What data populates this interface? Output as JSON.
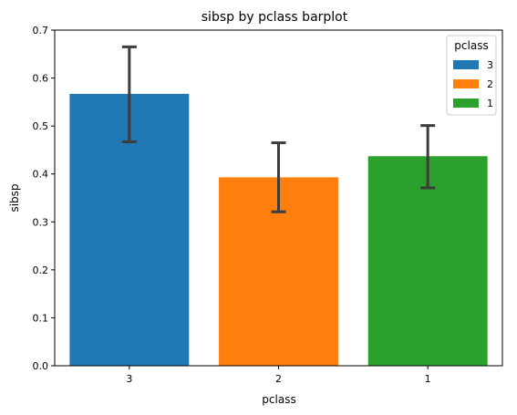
{
  "chart_data": {
    "type": "bar",
    "title": "sibsp by pclass barplot",
    "xlabel": "pclass",
    "ylabel": "sibsp",
    "categories": [
      "3",
      "2",
      "1"
    ],
    "values": [
      0.567,
      0.393,
      0.437
    ],
    "error_bars": [
      {
        "low": 0.467,
        "high": 0.665
      },
      {
        "low": 0.321,
        "high": 0.465
      },
      {
        "low": 0.371,
        "high": 0.501
      }
    ],
    "colors": [
      "#1f77b4",
      "#ff7f0e",
      "#2ca02c"
    ],
    "ylim": [
      0,
      0.7
    ],
    "yticks": [
      "0.0",
      "0.1",
      "0.2",
      "0.3",
      "0.4",
      "0.5",
      "0.6",
      "0.7"
    ],
    "grid": false,
    "legend": {
      "title": "pclass",
      "position": "top-right",
      "entries": [
        "3",
        "2",
        "1"
      ]
    }
  }
}
